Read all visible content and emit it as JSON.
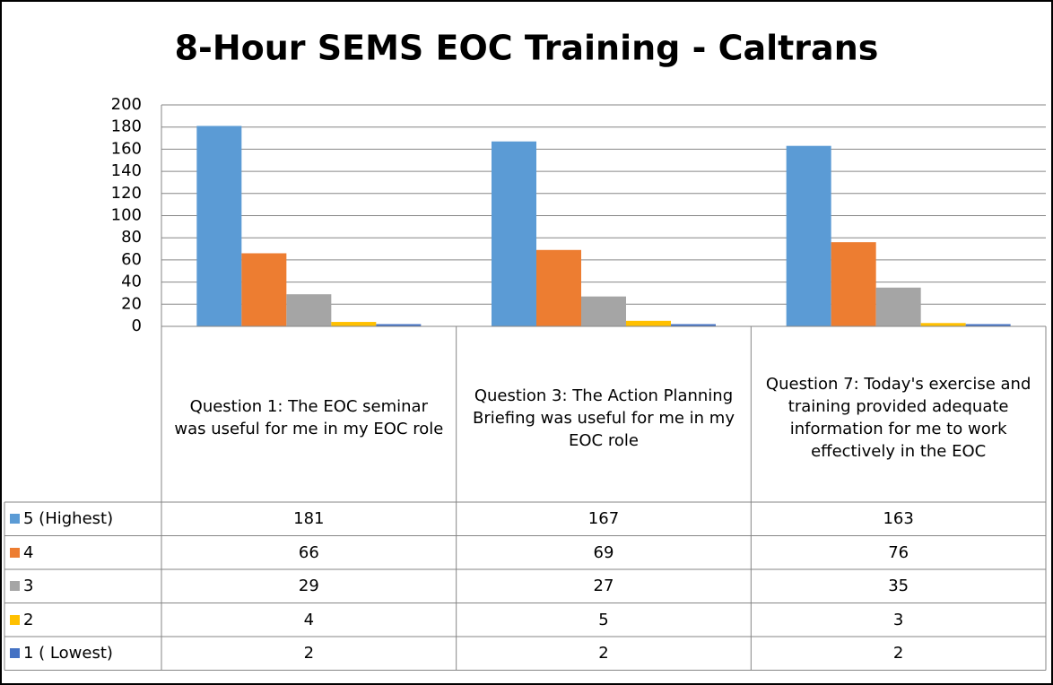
{
  "chart_data": {
    "type": "bar",
    "title": "8-Hour SEMS EOC Training - Caltrans",
    "categories": [
      "Question 1: The EOC seminar was useful for me in my EOC role",
      "Question 3: The Action Planning Briefing was useful for me in my EOC role",
      "Question 7: Today's exercise and training provided adequate information for me to work effectively in the EOC"
    ],
    "series": [
      {
        "name": "5 (Highest)",
        "color": "#5b9bd5",
        "values": [
          181,
          167,
          163
        ]
      },
      {
        "name": "4",
        "color": "#ed7d31",
        "values": [
          66,
          69,
          76
        ]
      },
      {
        "name": "3",
        "color": "#a5a5a5",
        "values": [
          29,
          27,
          35
        ]
      },
      {
        "name": "2",
        "color": "#ffc000",
        "values": [
          4,
          5,
          3
        ]
      },
      {
        "name": "1 ( Lowest)",
        "color": "#4472c4",
        "values": [
          2,
          2,
          2
        ]
      }
    ],
    "ylim": [
      0,
      200
    ],
    "yticks": [
      0,
      20,
      40,
      60,
      80,
      100,
      120,
      140,
      160,
      180,
      200
    ],
    "grid": true,
    "data_table": true
  }
}
